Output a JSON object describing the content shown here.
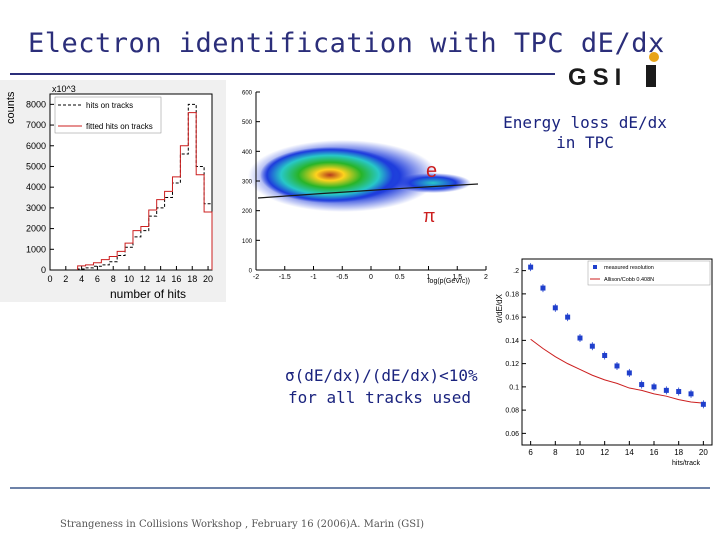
{
  "title": "Electron identification with TPC dE/dx",
  "logo_text": "GSI",
  "energy_label_line1": "Energy loss dE/dx",
  "energy_label_line2": "in  TPC",
  "resolution_text": "σ(dE/dx)/(dE/dx)<10%",
  "resolution_subtext": "for all tracks used",
  "footer_left": "Strangeness in Collisions Workshop , February 16 (2006)",
  "footer_right": "A. Marin (GSI)",
  "colors": {
    "title": "#2b2e7a",
    "accent_orange": "#e8a317",
    "curve_red": "#cc1f1f",
    "marker_blue": "#1f3fcc"
  },
  "chart_data": [
    {
      "type": "bar",
      "ylabel": "counts",
      "xlabel": "number  of  hits",
      "y_multiplier": "x10^3",
      "legend_items": [
        "hits on tracks",
        "fitted hits on tracks"
      ],
      "x_ticks": [
        "0",
        "2",
        "4",
        "6",
        "8",
        "10",
        "12",
        "14",
        "16",
        "18",
        "20"
      ],
      "y_ticks": [
        "0",
        "1000",
        "2000",
        "3000",
        "4000",
        "5000",
        "6000",
        "7000",
        "8000"
      ],
      "ylim": [
        0,
        8500
      ],
      "series": [
        {
          "name": "hits on tracks",
          "x": [
            4,
            5,
            6,
            7,
            8,
            9,
            10,
            11,
            12,
            13,
            14,
            15,
            16,
            17,
            18,
            19,
            20
          ],
          "values": [
            50,
            100,
            180,
            250,
            400,
            700,
            1100,
            1600,
            1900,
            2600,
            3000,
            3500,
            4200,
            5600,
            8000,
            5000,
            3200
          ]
        },
        {
          "name": "fitted hits on tracks",
          "x": [
            4,
            5,
            6,
            7,
            8,
            9,
            10,
            11,
            12,
            13,
            14,
            15,
            16,
            17,
            18,
            19,
            20
          ],
          "values": [
            200,
            250,
            350,
            500,
            650,
            900,
            1300,
            1900,
            2100,
            2900,
            3400,
            3800,
            4500,
            6000,
            7600,
            4600,
            2800
          ]
        }
      ]
    },
    {
      "type": "heatmap",
      "xlabel": "log(p(GeV/c))",
      "x_ticks": [
        "-2",
        "-1.5",
        "-1",
        "-0.5",
        "0",
        "0.5",
        "1",
        "1.5",
        "2"
      ],
      "y_ticks": [
        "0",
        "100",
        "200",
        "300",
        "400",
        "500",
        "600"
      ],
      "xlim": [
        -2,
        2
      ],
      "ylim": [
        0,
        600
      ],
      "annotations": [
        "e",
        "π"
      ]
    },
    {
      "type": "scatter",
      "ylabel": "σ/dE/dX",
      "xlabel": "hits/track",
      "legend_items": [
        "measured resolution",
        "Allison/Cobb 0.408N"
      ],
      "x_ticks": [
        "6",
        "8",
        "10",
        "12",
        "14",
        "16",
        "18",
        "20"
      ],
      "y_ticks": [
        "0.06",
        "0.08",
        "0.1",
        "0.12",
        "0.14",
        "0.16",
        "0.18",
        ".2"
      ],
      "xlim": [
        5.3,
        20.7
      ],
      "ylim": [
        0.05,
        0.21
      ],
      "series": [
        {
          "name": "measured resolution",
          "x": [
            6,
            7,
            8,
            9,
            10,
            11,
            12,
            13,
            14,
            15,
            16,
            17,
            18,
            19,
            20
          ],
          "values": [
            0.203,
            0.185,
            0.168,
            0.16,
            0.142,
            0.135,
            0.127,
            0.118,
            0.112,
            0.102,
            0.1,
            0.097,
            0.096,
            0.094,
            0.085
          ]
        },
        {
          "name": "Allison/Cobb 0.408N",
          "x": [
            6,
            7,
            8,
            9,
            10,
            11,
            12,
            13,
            14,
            15,
            16,
            17,
            18,
            19,
            20
          ],
          "values": [
            0.141,
            0.133,
            0.126,
            0.12,
            0.115,
            0.11,
            0.106,
            0.103,
            0.099,
            0.097,
            0.094,
            0.092,
            0.089,
            0.087,
            0.086
          ]
        }
      ]
    }
  ]
}
